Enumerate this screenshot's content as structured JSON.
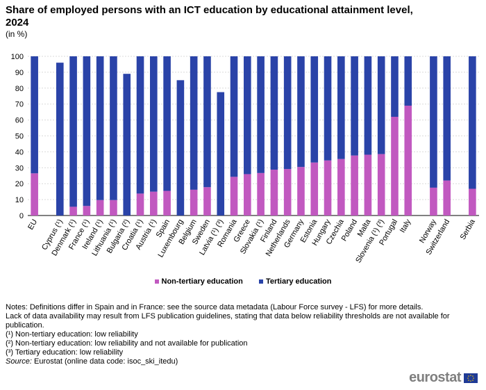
{
  "title": "Share of employed persons with an ICT education by educational attainment level, 2024",
  "unit": "(in %)",
  "colors": {
    "non_tertiary": "#c159c0",
    "tertiary": "#2a43a8",
    "grid": "#d9d9d9"
  },
  "legend": {
    "non_tertiary": "Non-tertiary education",
    "tertiary": "Tertiary education"
  },
  "notes": [
    "Notes: Definitions differ in Spain and in France: see the source data metadata (Labour Force survey - LFS) for more details.",
    "Lack of data availability may result from LFS publication guidelines, stating that data below reliability thresholds are not available for publication.",
    "(¹) Non-tertiary education: low reliability",
    "(²) Non-tertiary education: low reliability and not available for publication",
    "(³) Tertiary education: low reliability"
  ],
  "source": {
    "prefix": "Source:",
    "text": " Eurostat (online data code: isoc_ski_itedu)"
  },
  "logo": "eurostat",
  "chart_data": {
    "type": "bar",
    "stacked": true,
    "ylim": [
      0,
      100
    ],
    "yticks": [
      0,
      10,
      20,
      30,
      40,
      50,
      60,
      70,
      80,
      90,
      100
    ],
    "gap_after": [
      "EU",
      "Italy",
      "Switzerland"
    ],
    "categories": [
      "EU",
      "Cyprus (¹)",
      "Denmark (¹)",
      "France (¹)",
      "Ireland (¹)",
      "Lithuania (¹)",
      "Bulgaria (²)",
      "Croatia (¹)",
      "Austria (¹)",
      "Spain",
      "Luxembourg",
      "Belgium",
      "Sweden",
      "Latvia (¹) (³)",
      "Romania",
      "Greece",
      "Slovakia (¹)",
      "Finland",
      "Netherlands",
      "Germany",
      "Estonia",
      "Hungary",
      "Czechia",
      "Poland",
      "Malta",
      "Slovenia (¹) (³)",
      "Portugal",
      "Italy",
      "Norway",
      "Switzerland",
      "Serbia"
    ],
    "series": [
      {
        "name": "Non-tertiary education",
        "values": [
          26.5,
          0,
          5.5,
          6,
          9.7,
          9.7,
          0,
          13.8,
          15,
          15.5,
          0,
          16.2,
          17.8,
          0,
          24.3,
          26,
          26.7,
          28.8,
          29.2,
          30.5,
          33.3,
          34.6,
          35.5,
          37.7,
          38.2,
          38.6,
          62,
          69,
          17.5,
          22,
          16.8
        ]
      },
      {
        "name": "Tertiary education",
        "values": [
          73.5,
          96,
          94.5,
          94,
          90.3,
          90.3,
          89,
          86.2,
          85,
          84.5,
          85,
          83.8,
          82.2,
          77.5,
          75.7,
          74,
          73.3,
          71.2,
          70.8,
          69.5,
          66.7,
          65.4,
          64.5,
          62.3,
          61.8,
          61.4,
          38,
          31,
          82.5,
          78,
          83.2
        ]
      }
    ]
  }
}
